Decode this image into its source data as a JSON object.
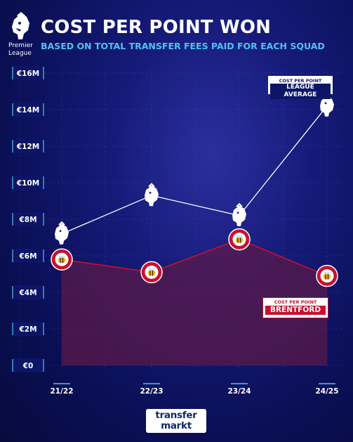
{
  "header": {
    "logo_text_line1": "Premier",
    "logo_text_line2": "League",
    "title": "COST PER POINT WON",
    "subtitle": "BASED ON TOTAL TRANSFER FEES PAID FOR EACH SQUAD"
  },
  "colors": {
    "background": "#151a78",
    "title": "#ffffff",
    "subtitle": "#4cc4f0",
    "league_line": "#ffffff",
    "brentford_line": "#c8102e",
    "brentford_area": "#5a1a4a"
  },
  "icons": {
    "league_marker": "premier-league-lion-icon",
    "brentford_marker": "brentford-bee-crest-icon",
    "footer_logo": "transfermarkt-logo"
  },
  "chart_data": {
    "type": "line",
    "title": "COST PER POINT WON",
    "subtitle": "BASED ON TOTAL TRANSFER FEES PAID FOR EACH SQUAD",
    "categories": [
      "21/22",
      "22/23",
      "23/24",
      "24/25"
    ],
    "y_ticks": [
      "€0",
      "€2M",
      "€4M",
      "€6M",
      "€8M",
      "€10M",
      "€12M",
      "€14M",
      "€16M"
    ],
    "ylim": [
      0,
      16
    ],
    "y_unit": "€M",
    "grid": true,
    "series": [
      {
        "label_line1": "COST PER POINT",
        "label_line2": "LEAGUE AVERAGE",
        "values": [
          7.2,
          9.3,
          8.2,
          14.2
        ],
        "marker": "premier-league-lion-icon"
      },
      {
        "label_line1": "COST PER POINT",
        "label_line2": "BRENTFORD",
        "values": [
          5.8,
          5.1,
          6.9,
          4.9
        ],
        "marker": "brentford-bee-crest-icon"
      }
    ]
  },
  "footer": {
    "logo_line1": "transfer",
    "logo_line2": "markt"
  }
}
